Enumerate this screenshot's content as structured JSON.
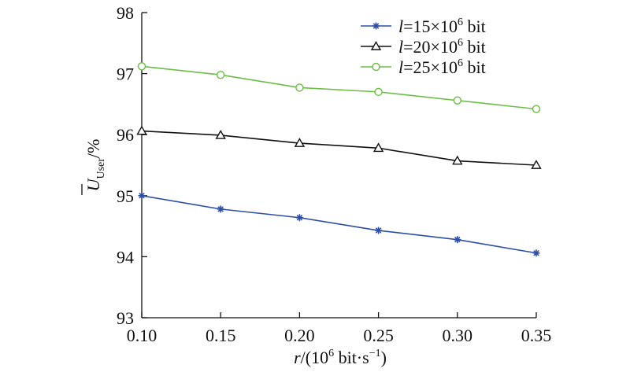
{
  "chart_data": {
    "type": "line",
    "title": "",
    "xlabel": {
      "var": "r",
      "text": "/(10",
      "exp": "6",
      "unit": " bit·s",
      "unit_exp": "−1",
      "close": ")"
    },
    "ylabel": {
      "var": "U",
      "sub": "User",
      "text": "/%"
    },
    "x": [
      0.1,
      0.15,
      0.2,
      0.25,
      0.3,
      0.35
    ],
    "xlim": [
      0.1,
      0.35
    ],
    "ylim": [
      93,
      98
    ],
    "xticks": [
      "0.10",
      "0.15",
      "0.20",
      "0.25",
      "0.30",
      "0.35"
    ],
    "yticks": [
      "93",
      "94",
      "95",
      "96",
      "97",
      "98"
    ],
    "grid": false,
    "legend_position": "top-right",
    "series": [
      {
        "name": "l=15×10^6 bit",
        "legend": {
          "var": "l",
          "text": "=15×10",
          "exp": "6",
          "unit": " bit"
        },
        "marker": "star",
        "color": "#2d4ea8",
        "values": [
          95.0,
          94.78,
          94.64,
          94.43,
          94.28,
          94.06
        ]
      },
      {
        "name": "l=20×10^6 bit",
        "legend": {
          "var": "l",
          "text": "=20×10",
          "exp": "6",
          "unit": " bit"
        },
        "marker": "triangle",
        "color": "#111111",
        "values": [
          96.06,
          95.99,
          95.86,
          95.78,
          95.57,
          95.5
        ]
      },
      {
        "name": "l=25×10^6 bit",
        "legend": {
          "var": "l",
          "text": "=25×10",
          "exp": "6",
          "unit": " bit"
        },
        "marker": "circle",
        "color": "#6cbd45",
        "values": [
          97.12,
          96.98,
          96.77,
          96.7,
          96.56,
          96.42
        ]
      }
    ]
  }
}
